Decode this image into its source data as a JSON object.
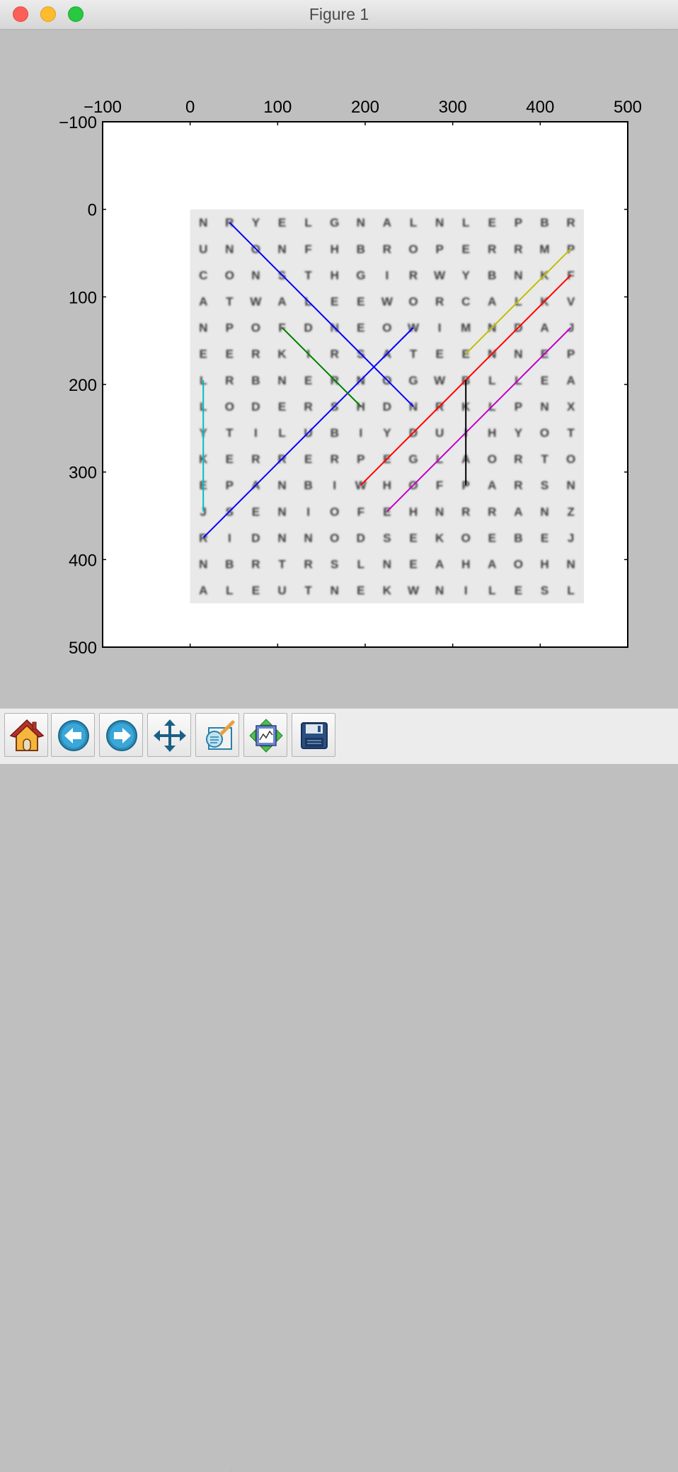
{
  "window": {
    "title": "Figure 1"
  },
  "toolbar": {
    "buttons": [
      {
        "icon": "home-icon",
        "tooltip": "Reset original view"
      },
      {
        "icon": "back-arrow-icon",
        "tooltip": "Back to previous view"
      },
      {
        "icon": "forward-arrow-icon",
        "tooltip": "Forward to next view"
      },
      {
        "icon": "pan-arrows-icon",
        "tooltip": "Pan axes"
      },
      {
        "icon": "zoom-rect-icon",
        "tooltip": "Zoom to rectangle"
      },
      {
        "icon": "subplots-config-icon",
        "tooltip": "Configure subplots"
      },
      {
        "icon": "save-disk-icon",
        "tooltip": "Save the figure"
      }
    ]
  },
  "chart_data": {
    "type": "image",
    "xlim": [
      -100,
      500
    ],
    "ylim": [
      500,
      -100
    ],
    "y_inverted": true,
    "xticks": [
      -100,
      0,
      100,
      200,
      300,
      400,
      500
    ],
    "yticks": [
      -100,
      0,
      100,
      200,
      300,
      400,
      500
    ],
    "x_tick_labels": [
      "−100",
      "0",
      "100",
      "200",
      "300",
      "400",
      "500"
    ],
    "y_tick_labels": [
      "−100",
      "0",
      "100",
      "200",
      "300",
      "400",
      "500"
    ],
    "xaxis_position": "top",
    "image_extent": [
      0,
      450,
      450,
      0
    ],
    "word_grid": [
      "NRYELGNALNLEPBR",
      "UNONFHBROPERRMP",
      "CONSTHGIRWYBNKF",
      "ATWALEEWORCALKV",
      "NPOFDNEOWIMNDAJ",
      "EERKIRSATEENNEP",
      "LRBNERNOGWBLLEA",
      "LODERSHDNRKLPNX",
      "YTILUBIYDUIHYOT",
      "KERRERPEGLAORTO",
      "EPANBIWHOFPARSN",
      "JSENIOFEHNRRANZ",
      "RIDNNODSEKOEBEJ",
      "NBRTRSLNEAHAOHN",
      "ALEUTNEKWNILESL"
    ],
    "series": [
      {
        "color": "#0000ff",
        "x": [
          45,
          255
        ],
        "y": [
          15,
          225
        ]
      },
      {
        "color": "#0000ff",
        "x": [
          15,
          255
        ],
        "y": [
          375,
          135
        ]
      },
      {
        "color": "#008000",
        "x": [
          105,
          195
        ],
        "y": [
          135,
          225
        ]
      },
      {
        "color": "#00bfbf",
        "x": [
          15,
          15
        ],
        "y": [
          195,
          345
        ]
      },
      {
        "color": "#ff0000",
        "x": [
          195,
          435
        ],
        "y": [
          315,
          75
        ]
      },
      {
        "color": "#bfbf00",
        "x": [
          315,
          435
        ],
        "y": [
          165,
          45
        ]
      },
      {
        "color": "#bf00bf",
        "x": [
          225,
          435
        ],
        "y": [
          345,
          135
        ]
      },
      {
        "color": "#000000",
        "x": [
          315,
          315
        ],
        "y": [
          195,
          315
        ]
      }
    ]
  }
}
